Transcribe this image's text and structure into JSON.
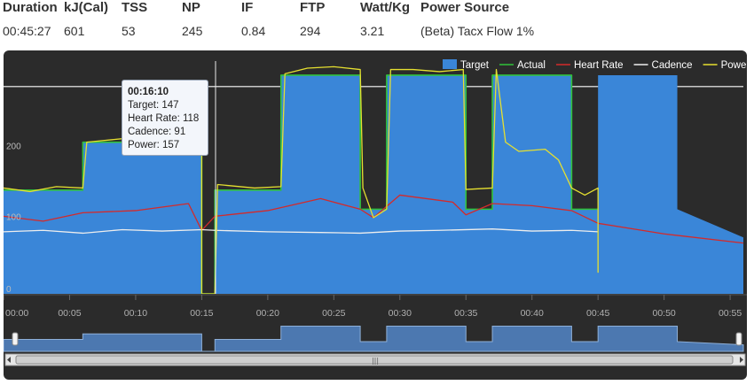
{
  "stats": {
    "headers": [
      "Duration",
      "kJ(Cal)",
      "TSS",
      "NP",
      "IF",
      "FTP",
      "Watt/Kg",
      "Power Source"
    ],
    "values": [
      "00:45:27",
      "601",
      "53",
      "245",
      "0.84",
      "294",
      "3.21",
      "(Beta) Tacx Flow 1%"
    ]
  },
  "chart_data": {
    "type": "area",
    "ylim": [
      0,
      330
    ],
    "xlim": [
      0,
      56
    ],
    "y_ticks": [
      "0",
      "100",
      "200"
    ],
    "x_ticks": [
      "00:00",
      "00:05",
      "00:10",
      "00:15",
      "00:20",
      "00:25",
      "00:30",
      "00:35",
      "00:40",
      "00:45",
      "00:50",
      "00:55"
    ],
    "legend": {
      "placement": "top-right",
      "entries": [
        {
          "name": "Target",
          "color": "#3a86d8",
          "symbol": "box"
        },
        {
          "name": "Actual",
          "color": "#31c13a",
          "symbol": "line"
        },
        {
          "name": "Heart Rate",
          "color": "#d42a2a",
          "symbol": "line"
        },
        {
          "name": "Cadence",
          "color": "#eeeeee",
          "symbol": "line"
        },
        {
          "name": "Power",
          "color": "#e6e030",
          "symbol": "line"
        }
      ]
    },
    "series": [
      {
        "name": "Target",
        "x": [
          0,
          6,
          6,
          15,
          15,
          16,
          16,
          21,
          21,
          27,
          27,
          29,
          29,
          35,
          35,
          37,
          37,
          43,
          43,
          45,
          45,
          51,
          51,
          56
        ],
        "values": [
          147,
          147,
          215,
          215,
          0,
          0,
          147,
          147,
          310,
          310,
          120,
          120,
          310,
          310,
          120,
          120,
          310,
          310,
          120,
          120,
          310,
          310,
          120,
          80
        ]
      },
      {
        "name": "Actual",
        "x": [
          0,
          6,
          6,
          15,
          15,
          16,
          16,
          21,
          21,
          27,
          27,
          29,
          29,
          35,
          35,
          37,
          37,
          43,
          43,
          45
        ],
        "values": [
          147,
          147,
          215,
          215,
          0,
          0,
          147,
          147,
          310,
          310,
          120,
          120,
          310,
          310,
          120,
          120,
          310,
          310,
          120,
          120
        ]
      },
      {
        "name": "Heart Rate",
        "x": [
          0,
          3,
          6,
          10,
          14,
          15,
          16,
          20,
          24,
          27,
          28,
          30,
          34,
          35,
          37,
          40,
          43,
          45,
          50,
          56
        ],
        "values": [
          110,
          103,
          115,
          118,
          128,
          90,
          110,
          118,
          135,
          120,
          108,
          140,
          130,
          112,
          128,
          125,
          118,
          100,
          85,
          72
        ]
      },
      {
        "name": "Cadence",
        "x": [
          0,
          3,
          6,
          9,
          12,
          15,
          16,
          20,
          24,
          27,
          30,
          33,
          37,
          40,
          43,
          45
        ],
        "values": [
          88,
          90,
          86,
          91,
          89,
          91,
          90,
          88,
          87,
          86,
          89,
          90,
          92,
          89,
          90,
          88
        ]
      },
      {
        "name": "Power",
        "x": [
          0,
          2,
          4,
          6,
          6.3,
          9,
          12,
          15,
          15,
          16,
          16.2,
          19,
          21,
          21.3,
          23,
          25,
          27,
          27.2,
          28,
          29,
          29.3,
          31,
          33,
          34.8,
          35,
          37,
          37.3,
          38,
          39,
          41,
          42,
          43,
          44,
          45,
          45
        ],
        "values": [
          150,
          145,
          152,
          150,
          215,
          220,
          217,
          222,
          0,
          0,
          155,
          150,
          152,
          312,
          320,
          322,
          318,
          150,
          108,
          120,
          318,
          318,
          315,
          318,
          148,
          150,
          318,
          215,
          202,
          205,
          190,
          150,
          140,
          150,
          30
        ]
      }
    ]
  },
  "tooltip": {
    "time": "00:16:10",
    "lines": [
      "Target: 147",
      "Heart Rate: 118",
      "Cadence: 91",
      "Power: 157"
    ]
  }
}
